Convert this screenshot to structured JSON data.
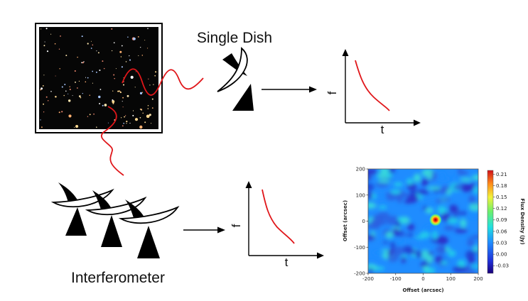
{
  "labels": {
    "single_dish": "Single Dish",
    "interferometer": "Interferometer"
  },
  "plot_top": {
    "y_label": "f",
    "x_label": "t"
  },
  "plot_bottom": {
    "y_label": "f",
    "x_label": "t"
  },
  "colors": {
    "signal": "#e0161a",
    "dish": "#000000",
    "curve": "#e0161a",
    "sky_frame": "#000000"
  },
  "chart_data": {
    "type": "heatmap",
    "xlabel": "Offset (arcsec)",
    "ylabel": "Offset (arcsec)",
    "colorbar_label": "Flux Density (Jy)",
    "xlim": [
      -200,
      200
    ],
    "ylim": [
      -200,
      200
    ],
    "x_ticks": [
      "-200",
      "-100",
      "0",
      "100",
      "200"
    ],
    "y_ticks": [
      "200",
      "100",
      "0",
      "-100",
      "-200"
    ],
    "colorbar_ticks": [
      "0.21",
      "0.18",
      "0.15",
      "0.12",
      "0.09",
      "0.06",
      "0.03",
      "0.00",
      "-0.03"
    ],
    "colorbar_range": [
      -0.05,
      0.22
    ],
    "source": {
      "x": 45,
      "y": 5,
      "peak": 0.21
    }
  }
}
